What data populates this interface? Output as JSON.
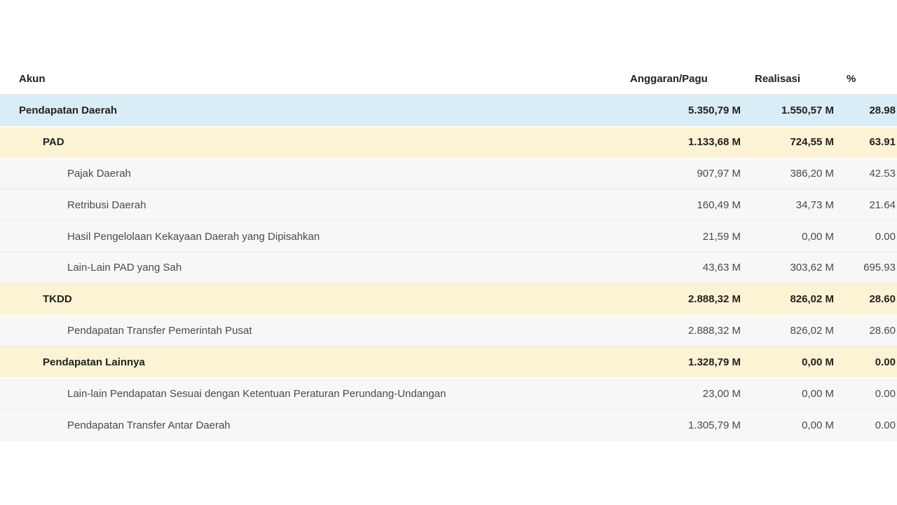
{
  "table": {
    "headers": {
      "akun": "Akun",
      "anggaran": "Anggaran/Pagu",
      "realisasi": "Realisasi",
      "persen": "%"
    },
    "rows": [
      {
        "level": 0,
        "akun": "Pendapatan Daerah",
        "anggaran": "5.350,79 M",
        "realisasi": "1.550,57 M",
        "persen": "28.98"
      },
      {
        "level": 1,
        "akun": "PAD",
        "anggaran": "1.133,68 M",
        "realisasi": "724,55 M",
        "persen": "63.91"
      },
      {
        "level": 2,
        "akun": "Pajak Daerah",
        "anggaran": "907,97 M",
        "realisasi": "386,20 M",
        "persen": "42.53"
      },
      {
        "level": 2,
        "akun": "Retribusi Daerah",
        "anggaran": "160,49 M",
        "realisasi": "34,73 M",
        "persen": "21.64"
      },
      {
        "level": 2,
        "akun": "Hasil Pengelolaan Kekayaan Daerah yang Dipisahkan",
        "anggaran": "21,59 M",
        "realisasi": "0,00 M",
        "persen": "0.00"
      },
      {
        "level": 2,
        "akun": "Lain-Lain PAD yang Sah",
        "anggaran": "43,63 M",
        "realisasi": "303,62 M",
        "persen": "695.93"
      },
      {
        "level": 1,
        "akun": "TKDD",
        "anggaran": "2.888,32 M",
        "realisasi": "826,02 M",
        "persen": "28.60"
      },
      {
        "level": 2,
        "akun": "Pendapatan Transfer Pemerintah Pusat",
        "anggaran": "2.888,32 M",
        "realisasi": "826,02 M",
        "persen": "28.60"
      },
      {
        "level": 1,
        "akun": "Pendapatan Lainnya",
        "anggaran": "1.328,79 M",
        "realisasi": "0,00 M",
        "persen": "0.00"
      },
      {
        "level": 2,
        "akun": "Lain-lain Pendapatan Sesuai dengan Ketentuan Peraturan Perundang-Undangan",
        "anggaran": "23,00 M",
        "realisasi": "0,00 M",
        "persen": "0.00"
      },
      {
        "level": 2,
        "akun": "Pendapatan Transfer Antar Daerah",
        "anggaran": "1.305,79 M",
        "realisasi": "0,00 M",
        "persen": "0.00"
      }
    ]
  }
}
